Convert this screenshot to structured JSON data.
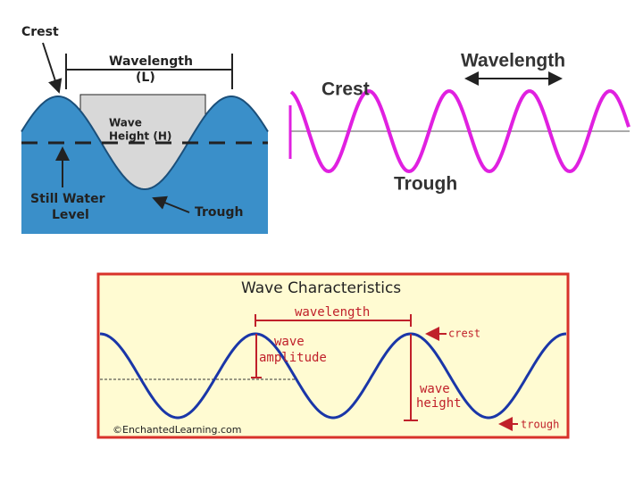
{
  "water_wave": {
    "crest": "Crest",
    "wavelength": "Wavelength",
    "wavelength_symbol": "(L)",
    "wave_height": [
      "Wave",
      "Height (H)"
    ],
    "still_water_level": [
      "Still Water",
      "Level"
    ],
    "trough": "Trough"
  },
  "pink_wave": {
    "wavelength": "Wavelength",
    "crest": "Crest",
    "trough": "Trough"
  },
  "wave_characteristics": {
    "title": "Wave Characteristics",
    "wavelength": "wavelength",
    "amplitude": [
      "wave",
      "amplitude"
    ],
    "crest": "crest",
    "height": [
      "wave",
      "height"
    ],
    "trough": "trough",
    "credit": "©EnchantedLearning.com"
  }
}
